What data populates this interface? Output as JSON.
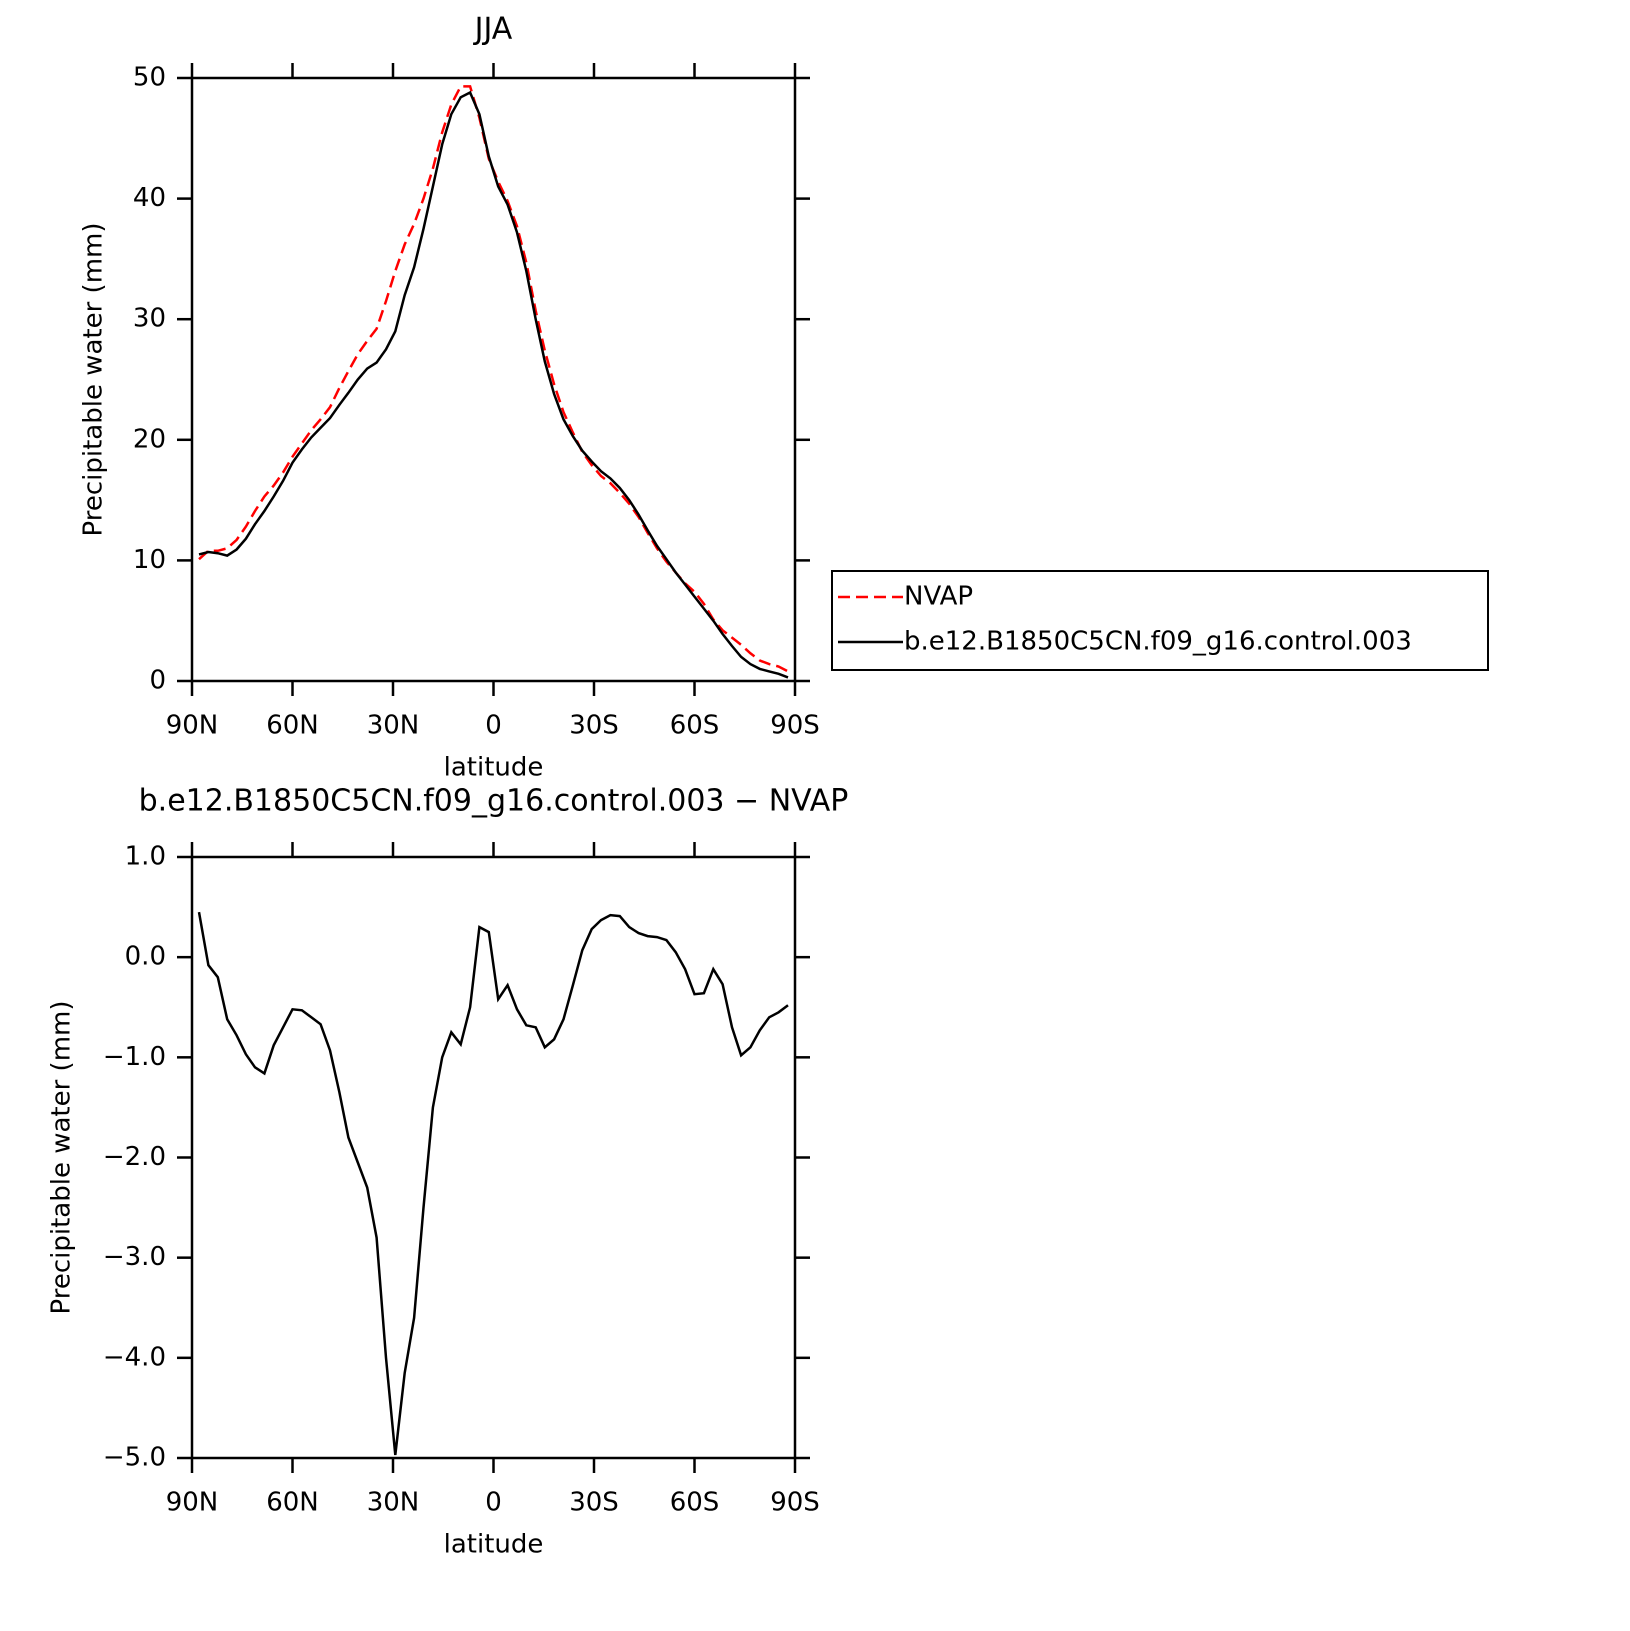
{
  "chart_data": [
    {
      "type": "line",
      "title": "JJA",
      "xlabel": "latitude",
      "ylabel": "Precipitable water (mm)",
      "x": [
        87.9,
        85.1,
        82.3,
        79.5,
        76.7,
        73.9,
        71.2,
        68.4,
        65.6,
        62.8,
        60.0,
        57.2,
        54.4,
        51.6,
        48.8,
        46.0,
        43.3,
        40.5,
        37.7,
        34.9,
        32.1,
        29.3,
        26.5,
        23.7,
        20.9,
        18.1,
        15.3,
        12.6,
        9.8,
        7.0,
        4.2,
        1.4,
        -1.4,
        -4.2,
        -7.0,
        -9.8,
        -12.6,
        -15.3,
        -18.1,
        -20.9,
        -23.7,
        -26.5,
        -29.3,
        -32.1,
        -34.9,
        -37.7,
        -40.5,
        -43.3,
        -46.0,
        -48.8,
        -51.6,
        -54.4,
        -57.2,
        -60.0,
        -62.8,
        -65.6,
        -68.4,
        -71.2,
        -73.9,
        -76.7,
        -79.5,
        -82.3,
        -85.1,
        -87.9
      ],
      "series": [
        {
          "name": "NVAP",
          "color": "#ff0000",
          "dash": "dashed",
          "values": [
            10.1,
            10.8,
            10.8,
            11.0,
            11.7,
            12.8,
            14.1,
            15.3,
            16.2,
            17.3,
            18.6,
            19.7,
            20.8,
            21.7,
            22.7,
            24.3,
            25.7,
            27.1,
            28.2,
            29.2,
            31.5,
            34.0,
            36.2,
            37.9,
            40.0,
            42.5,
            45.5,
            47.8,
            49.3,
            49.3,
            46.7,
            43.3,
            41.4,
            39.8,
            37.7,
            34.7,
            30.7,
            27.4,
            24.6,
            22.3,
            20.6,
            19.0,
            17.9,
            17.0,
            16.4,
            15.6,
            14.7,
            13.6,
            12.3,
            11.0,
            9.9,
            9.0,
            8.1,
            7.4,
            6.4,
            5.1,
            4.2,
            3.6,
            3.0,
            2.3,
            1.7,
            1.4,
            1.2,
            0.8
          ]
        },
        {
          "name": "b.e12.B1850C5CN.f09_g16.control.003",
          "color": "#000000",
          "dash": "solid",
          "values": [
            10.5,
            10.7,
            10.6,
            10.4,
            10.9,
            11.8,
            13.0,
            14.1,
            15.3,
            16.6,
            18.1,
            19.2,
            20.2,
            21.0,
            21.8,
            22.9,
            23.9,
            25.0,
            25.9,
            26.4,
            27.5,
            29.0,
            32.0,
            34.3,
            37.5,
            41.0,
            44.5,
            47.0,
            48.4,
            48.8,
            47.0,
            43.5,
            41.0,
            39.5,
            37.2,
            34.0,
            30.0,
            26.5,
            23.8,
            21.7,
            20.3,
            19.1,
            18.2,
            17.4,
            16.8,
            16.0,
            15.0,
            13.8,
            12.5,
            11.2,
            10.1,
            9.0,
            8.0,
            7.0,
            6.0,
            5.0,
            3.9,
            2.9,
            2.0,
            1.4,
            1.0,
            0.8,
            0.6,
            0.3
          ]
        }
      ],
      "xlim": [
        90,
        -90
      ],
      "xticks": [
        {
          "value": 90,
          "label": "90N"
        },
        {
          "value": 60,
          "label": "60N"
        },
        {
          "value": 30,
          "label": "30N"
        },
        0,
        {
          "value": -30,
          "label": "30S"
        },
        {
          "value": -60,
          "label": "60S"
        },
        {
          "value": -90,
          "label": "90S"
        }
      ],
      "ylim": [
        0,
        50
      ],
      "yticks": [
        0,
        10,
        20,
        30,
        40,
        50
      ],
      "legend": "right"
    },
    {
      "type": "line",
      "title": "b.e12.B1850C5CN.f09_g16.control.003 − NVAP",
      "xlabel": "latitude",
      "ylabel": "Precipitable water (mm)",
      "x": [
        87.9,
        85.1,
        82.3,
        79.5,
        76.7,
        73.9,
        71.2,
        68.4,
        65.6,
        62.8,
        60.0,
        57.2,
        54.4,
        51.6,
        48.8,
        46.0,
        43.3,
        40.5,
        37.7,
        34.9,
        32.1,
        29.3,
        26.5,
        23.7,
        20.9,
        18.1,
        15.3,
        12.6,
        9.8,
        7.0,
        4.2,
        1.4,
        -1.4,
        -4.2,
        -7.0,
        -9.8,
        -12.6,
        -15.3,
        -18.1,
        -20.9,
        -23.7,
        -26.5,
        -29.3,
        -32.1,
        -34.9,
        -37.7,
        -40.5,
        -43.3,
        -46.0,
        -48.8,
        -51.6,
        -54.4,
        -57.2,
        -60.0,
        -62.8,
        -65.6,
        -68.4,
        -71.2,
        -73.9,
        -76.7,
        -79.5,
        -82.3,
        -85.1,
        -87.9
      ],
      "color": "#000000",
      "values": [
        0.45,
        -0.08,
        -0.2,
        -0.62,
        -0.78,
        -0.97,
        -1.1,
        -1.16,
        -0.88,
        -0.7,
        -0.52,
        -0.53,
        -0.6,
        -0.67,
        -0.93,
        -1.35,
        -1.8,
        -2.05,
        -2.3,
        -2.8,
        -4.0,
        -4.97,
        -4.15,
        -3.6,
        -2.5,
        -1.5,
        -1.0,
        -0.75,
        -0.87,
        -0.5,
        0.3,
        0.25,
        -0.42,
        -0.28,
        -0.52,
        -0.68,
        -0.7,
        -0.9,
        -0.82,
        -0.62,
        -0.28,
        0.07,
        0.28,
        0.37,
        0.42,
        0.41,
        0.3,
        0.24,
        0.21,
        0.2,
        0.17,
        0.05,
        -0.12,
        -0.37,
        -0.36,
        -0.12,
        -0.27,
        -0.7,
        -0.98,
        -0.9,
        -0.73,
        -0.6,
        -0.55,
        -0.48
      ],
      "xlim": [
        90,
        -90
      ],
      "xticks": [
        {
          "value": 90,
          "label": "90N"
        },
        {
          "value": 60,
          "label": "60N"
        },
        {
          "value": 30,
          "label": "30N"
        },
        0,
        {
          "value": -30,
          "label": "30S"
        },
        {
          "value": -60,
          "label": "60S"
        },
        {
          "value": -90,
          "label": "90S"
        }
      ],
      "ylim": [
        -5,
        1
      ],
      "yticks": [
        {
          "value": 1,
          "label": "1.0"
        },
        {
          "value": 0,
          "label": "0.0"
        },
        {
          "value": -1,
          "label": "−1.0"
        },
        {
          "value": -2,
          "label": "−2.0"
        },
        {
          "value": -3,
          "label": "−3.0"
        },
        {
          "value": -4,
          "label": "−4.0"
        },
        {
          "value": -5,
          "label": "−5.0"
        }
      ]
    }
  ]
}
